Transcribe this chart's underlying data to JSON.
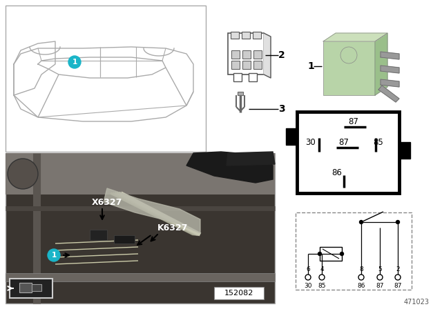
{
  "bg_color": "#ffffff",
  "fig_width": 6.4,
  "fig_height": 4.48,
  "footer_num": "471023",
  "photo_label": "152082",
  "relay_color": "#b8d4a8",
  "relay_color_top": "#cce0bb",
  "relay_color_side": "#9abf8a",
  "teal_color": "#1ab5c8",
  "schematic_pins_top": [
    "6",
    "4",
    "8",
    "5",
    "2"
  ],
  "schematic_pins_bottom": [
    "30",
    "85",
    "86",
    "87",
    "87"
  ],
  "X6327": "X6327",
  "K6327": "K6327"
}
